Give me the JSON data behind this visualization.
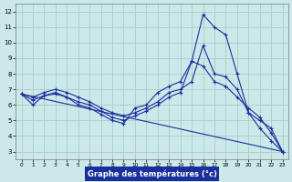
{
  "background_color": "#cce8e8",
  "grid_color": "#aacccc",
  "line_color": "#1a2f9e",
  "xlabel": "Graphe des températures (°c)",
  "xlabel_bg": "#1a2f9e",
  "xlim": [
    -0.5,
    23.5
  ],
  "ylim": [
    2.5,
    12.5
  ],
  "yticks": [
    3,
    4,
    5,
    6,
    7,
    8,
    9,
    10,
    11,
    12
  ],
  "xticks": [
    0,
    1,
    2,
    3,
    4,
    5,
    6,
    7,
    8,
    9,
    10,
    11,
    12,
    13,
    14,
    15,
    16,
    17,
    18,
    19,
    20,
    21,
    22,
    23
  ],
  "series": [
    {
      "x": [
        0,
        1,
        2,
        3,
        4,
        5,
        6,
        7,
        8,
        9,
        10,
        11,
        12,
        13,
        14,
        15,
        16,
        17,
        18,
        19,
        20,
        21,
        22,
        23
      ],
      "y": [
        6.7,
        6.0,
        6.6,
        6.7,
        6.5,
        6.0,
        5.8,
        5.4,
        5.0,
        4.8,
        5.8,
        6.0,
        6.8,
        7.2,
        7.5,
        8.8,
        11.8,
        11.0,
        10.5,
        8.0,
        5.5,
        4.5,
        3.7,
        3.0
      ]
    },
    {
      "x": [
        0,
        1,
        2,
        3,
        4,
        5,
        6,
        7,
        8,
        9,
        10,
        11,
        12,
        13,
        14,
        15,
        16,
        17,
        18,
        19,
        20,
        21,
        22,
        23
      ],
      "y": [
        6.7,
        6.5,
        6.8,
        7.0,
        6.8,
        6.5,
        6.2,
        5.8,
        5.5,
        5.3,
        5.5,
        5.8,
        6.2,
        6.8,
        7.0,
        7.5,
        9.8,
        8.0,
        7.8,
        7.0,
        5.5,
        5.0,
        4.5,
        3.0
      ]
    },
    {
      "x": [
        0,
        1,
        2,
        3,
        4,
        5,
        6,
        7,
        8,
        9,
        10,
        11,
        12,
        13,
        14,
        15,
        16,
        17,
        18,
        19,
        20,
        21,
        22,
        23
      ],
      "y": [
        6.7,
        6.3,
        6.6,
        6.8,
        6.5,
        6.2,
        6.0,
        5.6,
        5.2,
        5.0,
        5.3,
        5.6,
        6.0,
        6.5,
        6.8,
        8.8,
        8.5,
        7.5,
        7.2,
        6.5,
        5.8,
        5.2,
        4.2,
        3.0
      ]
    },
    {
      "x": [
        0,
        23
      ],
      "y": [
        6.7,
        3.0
      ],
      "no_marker": true
    }
  ]
}
